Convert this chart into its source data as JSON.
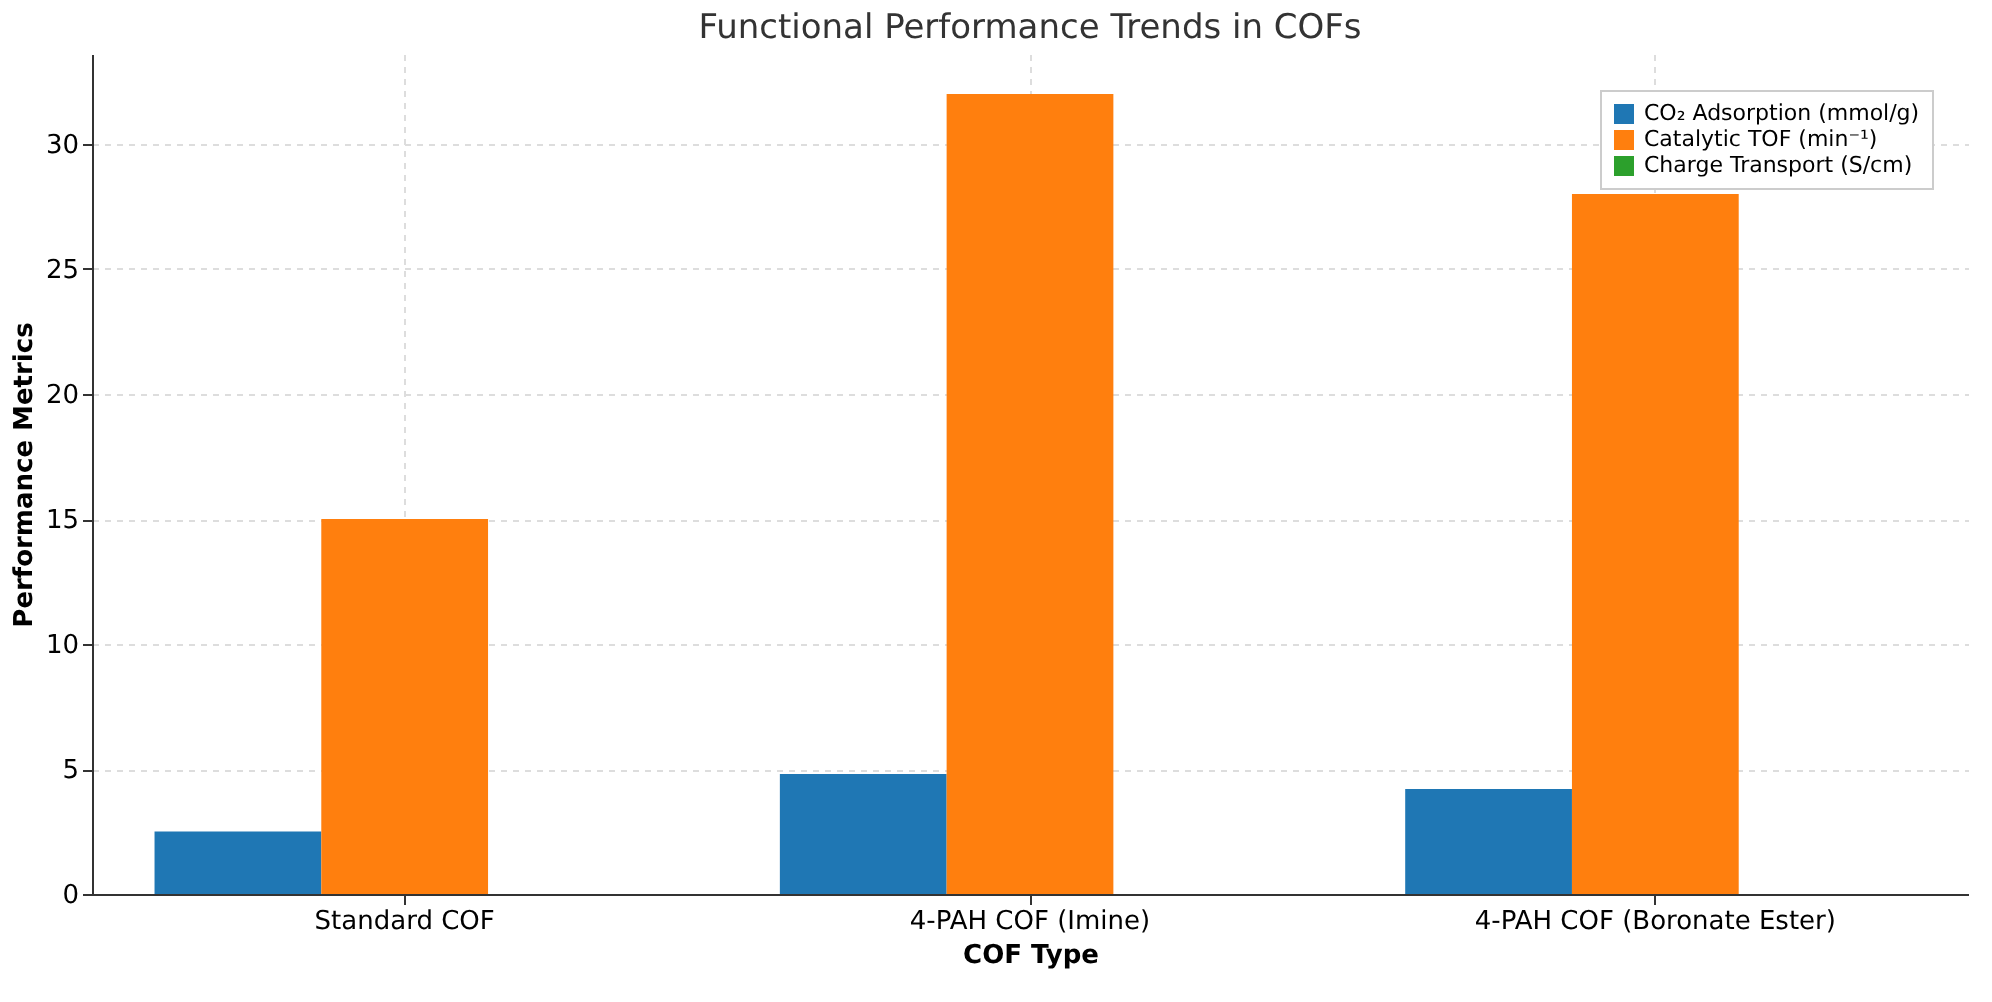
{
  "chart_data": {
    "type": "bar",
    "title": "Functional Performance Trends in COFs",
    "xlabel": "COF Type",
    "ylabel": "Performance Metrics",
    "categories": [
      "Standard COF",
      "4-PAH COF (Imine)",
      "4-PAH COF (Boronate Ester)"
    ],
    "series": [
      {
        "name": "CO₂ Adsorption (mmol/g)",
        "color": "#1f77b4",
        "values": [
          2.5,
          4.8,
          4.2
        ]
      },
      {
        "name": "Catalytic TOF (min⁻¹)",
        "color": "#ff7f0e",
        "values": [
          15,
          32,
          28
        ]
      },
      {
        "name": "Charge Transport (S/cm)",
        "color": "#2ca02c",
        "values": [
          0,
          0,
          0
        ]
      }
    ],
    "ylim": [
      0,
      33.6
    ],
    "yticks": [
      0,
      5,
      10,
      15,
      20,
      25,
      30
    ],
    "grid": true,
    "legend": "top right"
  }
}
